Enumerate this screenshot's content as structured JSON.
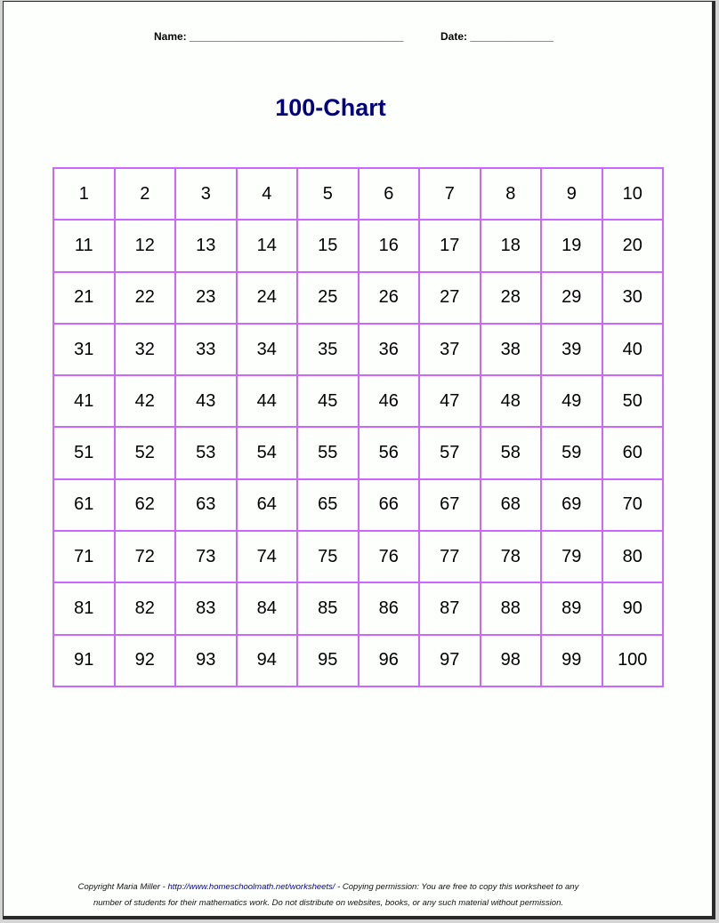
{
  "header": {
    "name_label": "Name: ____________________________________",
    "date_label": "Date: ______________"
  },
  "title": "100-Chart",
  "grid": [
    [
      "1",
      "2",
      "3",
      "4",
      "5",
      "6",
      "7",
      "8",
      "9",
      "10"
    ],
    [
      "11",
      "12",
      "13",
      "14",
      "15",
      "16",
      "17",
      "18",
      "19",
      "20"
    ],
    [
      "21",
      "22",
      "23",
      "24",
      "25",
      "26",
      "27",
      "28",
      "29",
      "30"
    ],
    [
      "31",
      "32",
      "33",
      "34",
      "35",
      "36",
      "37",
      "38",
      "39",
      "40"
    ],
    [
      "41",
      "42",
      "43",
      "44",
      "45",
      "46",
      "47",
      "48",
      "49",
      "50"
    ],
    [
      "51",
      "52",
      "53",
      "54",
      "55",
      "56",
      "57",
      "58",
      "59",
      "60"
    ],
    [
      "61",
      "62",
      "63",
      "64",
      "65",
      "66",
      "67",
      "68",
      "69",
      "70"
    ],
    [
      "71",
      "72",
      "73",
      "74",
      "75",
      "76",
      "77",
      "78",
      "79",
      "80"
    ],
    [
      "81",
      "82",
      "83",
      "84",
      "85",
      "86",
      "87",
      "88",
      "89",
      "90"
    ],
    [
      "91",
      "92",
      "93",
      "94",
      "95",
      "96",
      "97",
      "98",
      "99",
      "100"
    ]
  ],
  "colors": {
    "title": "#000080",
    "grid_border": "#cc66ff",
    "link": "#0000aa"
  },
  "footer": {
    "copyright": "Copyright Maria Miller - ",
    "link": "http://www.homeschoolmath.net/worksheets/",
    "line1_rest": " - Copying permission: You are free to copy this worksheet to any",
    "line2": "number of students for their mathematics work. Do not distribute on websites, books, or any such material without permission."
  }
}
